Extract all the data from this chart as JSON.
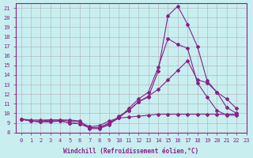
{
  "xlabel": "Windchill (Refroidissement éolien,°C)",
  "ylabel": "",
  "xlim": [
    -0.5,
    23
  ],
  "ylim": [
    8,
    21.5
  ],
  "yticks": [
    8,
    9,
    10,
    11,
    12,
    13,
    14,
    15,
    16,
    17,
    18,
    19,
    20,
    21
  ],
  "xticks": [
    0,
    1,
    2,
    3,
    4,
    5,
    6,
    7,
    8,
    9,
    10,
    11,
    12,
    13,
    14,
    15,
    16,
    17,
    18,
    19,
    20,
    21,
    22,
    23
  ],
  "bg_color": "#c8eef0",
  "grid_color": "#b0b0b0",
  "line_color": "#882288",
  "lines": [
    {
      "x": [
        0,
        1,
        2,
        3,
        4,
        5,
        6,
        7,
        8,
        9,
        10,
        11,
        12,
        13,
        14,
        15,
        16,
        17,
        18,
        19,
        20,
        21,
        22
      ],
      "y": [
        9.4,
        9.2,
        9.2,
        9.3,
        9.3,
        9.3,
        9.2,
        8.4,
        8.4,
        8.8,
        9.7,
        10.3,
        11.2,
        11.7,
        14.4,
        20.2,
        21.2,
        19.3,
        17.0,
        13.4,
        12.2,
        10.6,
        10.0
      ]
    },
    {
      "x": [
        0,
        1,
        2,
        3,
        4,
        5,
        6,
        7,
        8,
        9,
        10,
        11,
        12,
        13,
        14,
        15,
        16,
        17,
        18,
        19,
        20,
        21,
        22
      ],
      "y": [
        9.4,
        9.2,
        9.1,
        9.2,
        9.2,
        9.0,
        8.9,
        8.5,
        8.5,
        8.9,
        9.5,
        10.5,
        11.5,
        12.2,
        14.8,
        17.8,
        17.2,
        16.8,
        13.2,
        11.7,
        10.3,
        9.8,
        9.8
      ]
    },
    {
      "x": [
        0,
        1,
        2,
        3,
        4,
        5,
        6,
        7,
        8,
        9,
        10,
        11,
        12,
        13,
        14,
        15,
        16,
        17,
        18,
        19,
        20,
        21,
        22
      ],
      "y": [
        9.4,
        9.2,
        9.1,
        9.1,
        9.2,
        9.0,
        8.9,
        8.5,
        8.5,
        9.0,
        9.6,
        10.3,
        11.2,
        11.8,
        12.5,
        13.5,
        14.5,
        15.5,
        13.5,
        13.2,
        12.2,
        11.5,
        10.5
      ]
    },
    {
      "x": [
        0,
        1,
        2,
        3,
        4,
        5,
        6,
        7,
        8,
        9,
        10,
        11,
        12,
        13,
        14,
        15,
        16,
        17,
        18,
        19,
        20,
        21,
        22
      ],
      "y": [
        9.4,
        9.3,
        9.3,
        9.3,
        9.3,
        9.2,
        9.1,
        8.6,
        8.7,
        9.2,
        9.5,
        9.6,
        9.7,
        9.8,
        9.9,
        9.9,
        9.9,
        9.9,
        9.9,
        9.9,
        9.9,
        9.9,
        9.9
      ]
    }
  ]
}
